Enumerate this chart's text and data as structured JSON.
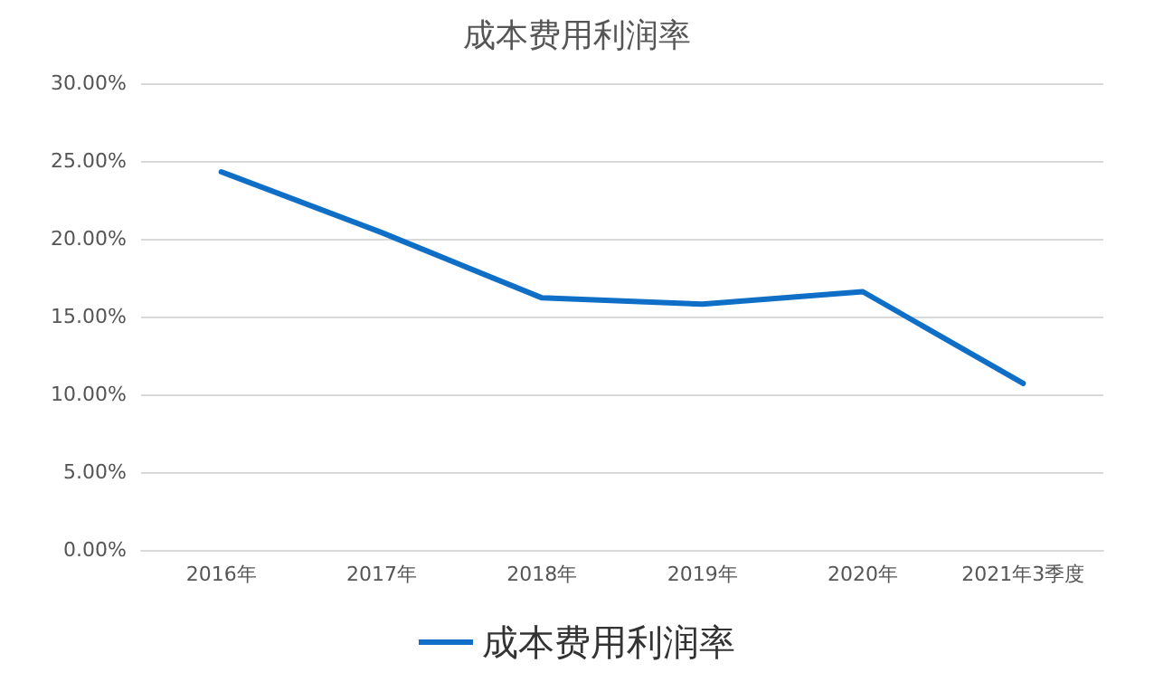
{
  "chart_data": {
    "type": "line",
    "title": "成本费用利润率",
    "categories": [
      "2016年",
      "2017年",
      "2018年",
      "2019年",
      "2020年",
      "2021年3季度"
    ],
    "series": [
      {
        "name": "成本费用利润率",
        "color": "#0f6fc6",
        "values": [
          24.3,
          20.4,
          16.2,
          15.8,
          16.6,
          10.7
        ]
      }
    ],
    "ylim": [
      0,
      30
    ],
    "yticks": [
      {
        "value": 0,
        "label": "0.00%"
      },
      {
        "value": 5,
        "label": "5.00%"
      },
      {
        "value": 10,
        "label": "10.00%"
      },
      {
        "value": 15,
        "label": "15.00%"
      },
      {
        "value": 20,
        "label": "20.00%"
      },
      {
        "value": 25,
        "label": "25.00%"
      },
      {
        "value": 30,
        "label": "30.00%"
      }
    ],
    "grid": "y",
    "legend": "bottom",
    "marker": "none",
    "line_style": "solid"
  }
}
